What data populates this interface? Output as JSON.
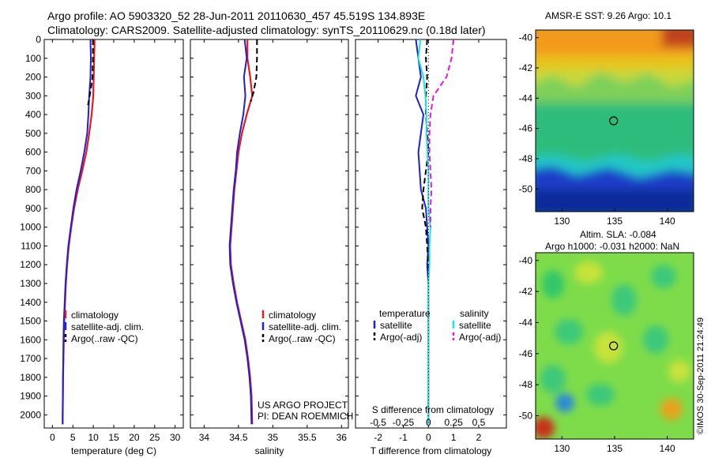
{
  "title": {
    "line1": "Argo profile: AO 5903320_52 28-Jun-2011 20110630_457 45.519S 134.893E",
    "line2": "Climatology: CARS2009. Satellite-adjusted climatology: synTS_20110629.nc (0.18d later)"
  },
  "credits": {
    "project": "US ARGO PROJECT",
    "pi": "PI: DEAN ROEMMICH",
    "stamp": "©IMOS 30-Sep-2011 21:24:49"
  },
  "colors": {
    "climatology": "#e41a1c",
    "satellite": "#1f1fd6",
    "argo": "#000000",
    "sal_satellite": "#19e3e3",
    "sal_argo": "#e01bd8"
  },
  "chart_data": [
    {
      "type": "line",
      "name": "temperature-panel",
      "xlabel": "temperature (deg C)",
      "ylabel": "",
      "xlim": [
        -2,
        32
      ],
      "ylim": [
        2070,
        0
      ],
      "xticks": [
        0,
        5,
        10,
        15,
        20,
        25,
        30
      ],
      "yticks": [
        0,
        100,
        200,
        300,
        400,
        500,
        600,
        700,
        800,
        900,
        1000,
        1100,
        1200,
        1300,
        1400,
        1500,
        1600,
        1700,
        1800,
        1900,
        2000
      ],
      "legend": [
        "climatology",
        "satellite-adj. clim.",
        "Argo(..raw -QC)"
      ],
      "series": [
        {
          "name": "climatology",
          "x": [
            10.3,
            10.2,
            10.1,
            10.0,
            9.6,
            9.0,
            8.3,
            7.3,
            6.2,
            5.3,
            4.6,
            4.0,
            3.6,
            3.3,
            3.1,
            2.9,
            2.8,
            2.7,
            2.6,
            2.55,
            2.5
          ],
          "y": [
            0,
            100,
            200,
            300,
            400,
            500,
            600,
            700,
            800,
            900,
            1000,
            1100,
            1200,
            1300,
            1400,
            1500,
            1600,
            1700,
            1800,
            1900,
            2050
          ]
        },
        {
          "name": "satellite",
          "x": [
            9.3,
            9.4,
            9.3,
            9.0,
            8.8,
            8.5,
            7.8,
            6.9,
            5.9,
            5.1,
            4.5,
            3.9,
            3.5,
            3.2,
            3.0,
            2.8,
            2.7,
            2.65,
            2.6,
            2.55,
            2.5
          ],
          "y": [
            0,
            100,
            200,
            300,
            400,
            500,
            600,
            700,
            800,
            900,
            1000,
            1100,
            1200,
            1300,
            1400,
            1500,
            1600,
            1700,
            1800,
            1900,
            2050
          ]
        },
        {
          "name": "argo",
          "x": [
            9.9,
            9.9,
            9.8,
            9.5,
            9.1,
            8.7
          ],
          "y": [
            0,
            100,
            200,
            250,
            300,
            350
          ]
        }
      ]
    },
    {
      "type": "line",
      "name": "salinity-panel",
      "xlabel": "salinity",
      "xlim": [
        33.8,
        36.1
      ],
      "ylim": [
        2070,
        0
      ],
      "xticks": [
        34,
        34.5,
        35,
        35.5,
        36
      ],
      "legend": [
        "climatology",
        "satellite-adj. clim.",
        "Argo(..raw -QC)"
      ],
      "series": [
        {
          "name": "climatology",
          "x": [
            34.63,
            34.63,
            34.67,
            34.7,
            34.62,
            34.55,
            34.5,
            34.47,
            34.44,
            34.42,
            34.4,
            34.38,
            34.39,
            34.43,
            34.48,
            34.54,
            34.6,
            34.64,
            34.67,
            34.69,
            34.7
          ],
          "y": [
            0,
            100,
            200,
            300,
            400,
            500,
            600,
            700,
            800,
            900,
            1000,
            1100,
            1200,
            1300,
            1400,
            1500,
            1600,
            1700,
            1800,
            1900,
            2050
          ]
        },
        {
          "name": "satellite",
          "x": [
            34.59,
            34.62,
            34.58,
            34.6,
            34.57,
            34.52,
            34.48,
            34.46,
            34.43,
            34.41,
            34.39,
            34.37,
            34.38,
            34.42,
            34.47,
            34.53,
            34.59,
            34.63,
            34.66,
            34.68,
            34.69
          ],
          "y": [
            0,
            100,
            200,
            300,
            400,
            500,
            600,
            700,
            800,
            900,
            1000,
            1100,
            1200,
            1300,
            1400,
            1500,
            1600,
            1700,
            1800,
            1900,
            2050
          ]
        },
        {
          "name": "argo",
          "x": [
            34.77,
            34.77,
            34.76,
            34.72,
            34.68
          ],
          "y": [
            0,
            100,
            200,
            280,
            330
          ]
        }
      ]
    },
    {
      "type": "line",
      "name": "difference-panel",
      "xlabel": "T difference from climatology",
      "xlabel2": "S difference from climatology",
      "xlim": [
        -2.9,
        3.1
      ],
      "ylim": [
        2070,
        0
      ],
      "xticks": [
        -2,
        -1,
        0,
        1,
        2
      ],
      "xticks2": [
        "-0.5",
        "-0.25",
        "0",
        "0.25",
        "0.5"
      ],
      "legend": {
        "temperature_header": "temperature",
        "salinity_header": "salinity",
        "temp_satellite": "satellite",
        "temp_argo": "Argo(-adj)",
        "sal_satellite": "satellite",
        "sal_argo": "Argo(-adj)"
      },
      "series": [
        {
          "name": "T satellite",
          "x": [
            -0.5,
            -0.4,
            -0.3,
            -0.5,
            -0.2,
            -0.3,
            -0.4,
            -0.35,
            -0.3,
            -0.1,
            -0.05,
            0,
            -0.05,
            0,
            0,
            0,
            0,
            0,
            0,
            0,
            0
          ],
          "y": [
            0,
            100,
            200,
            300,
            400,
            500,
            600,
            700,
            800,
            900,
            1000,
            1100,
            1200,
            1300,
            1400,
            1500,
            1600,
            1700,
            1800,
            1900,
            2050
          ]
        },
        {
          "name": "T argo",
          "x": [
            -0.05,
            -0.1,
            -0.05,
            -0.1,
            -0.1,
            -0.05,
            0,
            -0.1,
            -0.2,
            -0.25,
            -0.1,
            -0.05,
            0,
            0
          ],
          "y": [
            0,
            100,
            200,
            300,
            400,
            500,
            600,
            700,
            800,
            900,
            1000,
            1100,
            1200,
            1300
          ]
        },
        {
          "name": "S satellite",
          "x": [
            -0.08,
            -0.1,
            -0.05,
            -0.03,
            -0.02,
            -0.02,
            -0.01,
            0,
            0,
            0,
            0.02,
            0.01,
            0.01,
            0,
            0,
            0,
            0,
            0,
            0,
            0,
            0
          ],
          "y": [
            0,
            100,
            200,
            300,
            400,
            500,
            600,
            700,
            800,
            900,
            1000,
            1100,
            1200,
            1300,
            1400,
            1500,
            1600,
            1700,
            1800,
            1900,
            2050
          ]
        },
        {
          "name": "S argo",
          "x": [
            0.25,
            0.23,
            0.18,
            0.05,
            0.02,
            0.01,
            0.01,
            0.02,
            0.03,
            0.02,
            0.02
          ],
          "y": [
            0,
            100,
            200,
            300,
            400,
            500,
            600,
            700,
            800,
            900,
            1000
          ]
        }
      ]
    },
    {
      "type": "heatmap",
      "name": "sst-map",
      "title": "AMSR-E SST: 9.26 Argo: 10.1",
      "xticks": [
        130,
        135,
        140
      ],
      "yticks": [
        -40,
        -42,
        -44,
        -46,
        -48,
        -50
      ],
      "xlim": [
        127.5,
        142.5
      ],
      "ylim": [
        -51.5,
        -39.5
      ],
      "marker": [
        134.9,
        -45.5
      ]
    },
    {
      "type": "heatmap",
      "name": "sla-map",
      "title_line1": "Altim. SLA: -0.084",
      "title_line2": "Argo h1000: -0.031 h2000: NaN",
      "xticks": [
        130,
        135,
        140
      ],
      "yticks": [
        -40,
        -42,
        -44,
        -46,
        -48,
        -50
      ],
      "xlim": [
        127.5,
        142.5
      ],
      "ylim": [
        -51.5,
        -39.5
      ],
      "marker": [
        134.9,
        -45.5
      ]
    }
  ]
}
